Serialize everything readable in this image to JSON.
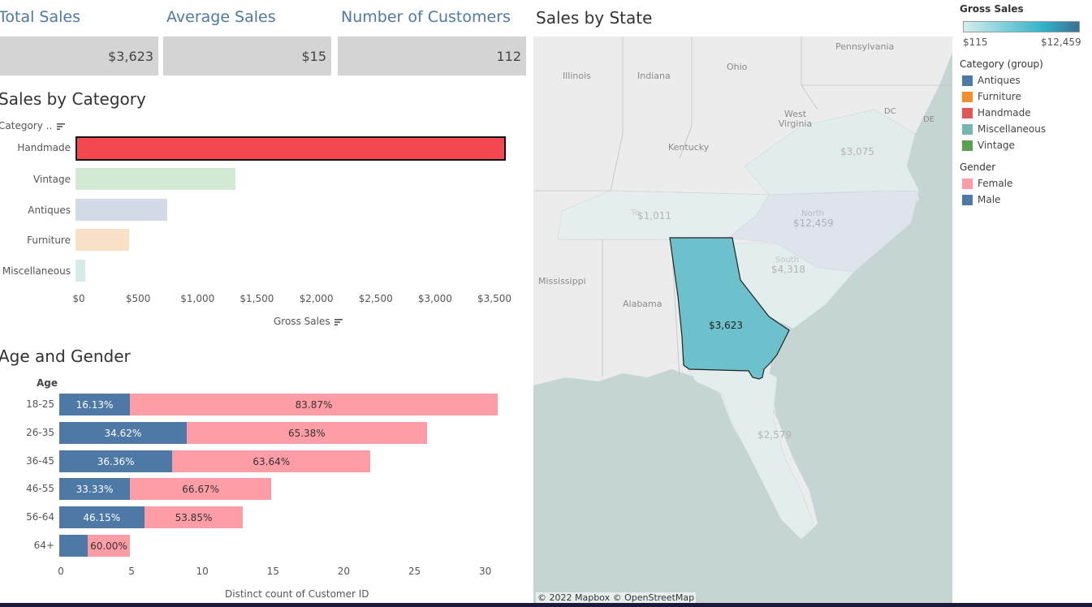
{
  "kpis": [
    {
      "title": "Total Sales",
      "value": "$3,623"
    },
    {
      "title": "Average Sales",
      "value": "$15"
    },
    {
      "title": "Number of Customers",
      "value": "112"
    }
  ],
  "category_chart": {
    "title": "Sales by Category",
    "axis_header": "Category ..",
    "xlabel": "Gross Sales",
    "ticks": [
      "$0",
      "$500",
      "$1,000",
      "$1,500",
      "$2,000",
      "$2,500",
      "$3,000",
      "$3,500"
    ]
  },
  "age_chart": {
    "title": "Age and Gender",
    "axis_header": "Age",
    "xlabel": "Distinct count of Customer ID",
    "ticks": [
      "0",
      "5",
      "10",
      "15",
      "20",
      "25",
      "30"
    ]
  },
  "map": {
    "title": "Sales by State",
    "attribution": "© 2022 Mapbox  © OpenStreetMap",
    "selected_value": "$3,623",
    "state_values": [
      {
        "label": "$3,075"
      },
      {
        "label": "$1,011"
      },
      {
        "label": "$12,459"
      },
      {
        "label": "$4,318"
      },
      {
        "label": "$2,579"
      }
    ],
    "place_labels": [
      "Pennsylvania",
      "Ohio",
      "Illinois",
      "Indiana",
      "West Virginia",
      "Kentucky",
      "Mississippi",
      "Alabama",
      "DC",
      "DE",
      "North",
      "South",
      "Te"
    ],
    "colors": {
      "water": "#c5d5d4",
      "land": "#ececec",
      "selected": "#6cc1cc"
    }
  },
  "legend": {
    "gross_sales_title": "Gross Sales",
    "gross_min": "$115",
    "gross_max": "$12,459",
    "category_title": "Category (group)",
    "categories": [
      {
        "name": "Antiques",
        "color": "#4e79a7"
      },
      {
        "name": "Furniture",
        "color": "#f28e2b"
      },
      {
        "name": "Handmade",
        "color": "#e15759"
      },
      {
        "name": "Miscellaneous",
        "color": "#76b7b2"
      },
      {
        "name": "Vintage",
        "color": "#59a14f"
      }
    ],
    "gender_title": "Gender",
    "genders": [
      {
        "name": "Female",
        "color": "#ff9da7"
      },
      {
        "name": "Male",
        "color": "#4e79a7"
      }
    ]
  },
  "chart_data": [
    {
      "type": "bar",
      "title": "Sales by Category",
      "xlabel": "Gross Sales",
      "ylabel": "Category ..",
      "categories": [
        "Handmade",
        "Vintage",
        "Antiques",
        "Furniture",
        "Miscellaneous"
      ],
      "values": [
        3623,
        1350,
        770,
        450,
        80
      ],
      "xlim": [
        0,
        3700
      ],
      "colors": [
        "#f5474f",
        "#d4e9d4",
        "#d3dce6",
        "#f8e1c6",
        "#d7ebea"
      ]
    },
    {
      "type": "bar",
      "title": "Age and Gender",
      "xlabel": "Distinct count of Customer ID",
      "ylabel": "Age",
      "categories": [
        "18-25",
        "26-35",
        "36-45",
        "46-55",
        "56-64",
        "64+"
      ],
      "xlim": [
        0,
        33
      ],
      "series": [
        {
          "name": "Male",
          "values": [
            5,
            9,
            8,
            5,
            6,
            2
          ],
          "labels": [
            "16.13%",
            "34.62%",
            "36.36%",
            "33.33%",
            "46.15%",
            ""
          ]
        },
        {
          "name": "Female",
          "values": [
            26,
            17,
            14,
            10,
            7,
            3
          ],
          "labels": [
            "83.87%",
            "65.38%",
            "63.64%",
            "66.67%",
            "53.85%",
            "60.00%"
          ]
        }
      ]
    }
  ]
}
